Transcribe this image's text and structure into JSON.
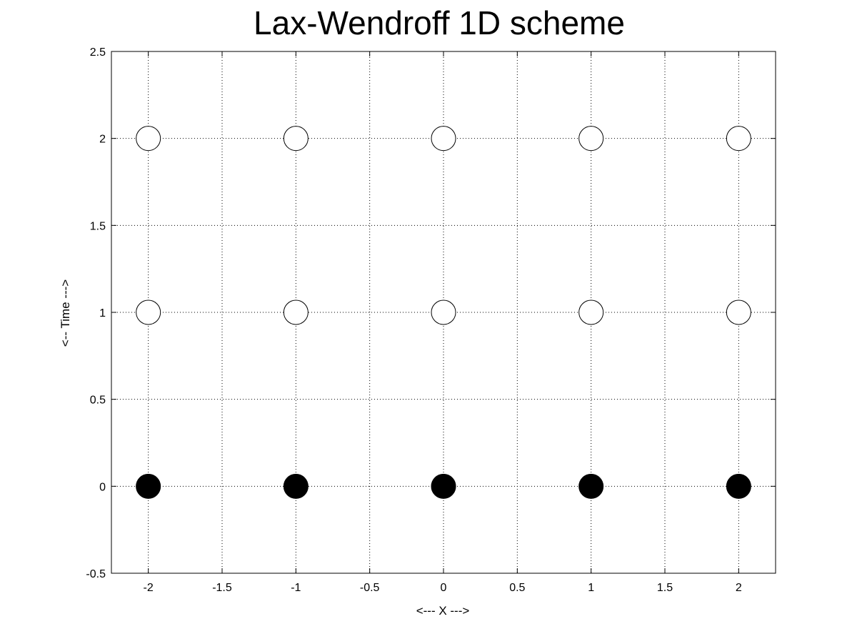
{
  "chart_data": {
    "type": "scatter",
    "title": "Lax-Wendroff 1D scheme",
    "xlabel": "<--- X --->",
    "ylabel": "<-- Time --->",
    "xlim": [
      -2.25,
      2.25
    ],
    "ylim": [
      -0.5,
      2.5
    ],
    "x_ticks": [
      -2,
      -1.5,
      -1,
      -0.5,
      0,
      0.5,
      1,
      1.5,
      2
    ],
    "x_tick_labels": [
      "-2",
      "-1.5",
      "-1",
      "-0.5",
      "0",
      "0.5",
      "1",
      "1.5",
      "2"
    ],
    "y_ticks": [
      -0.5,
      0,
      0.5,
      1,
      1.5,
      2,
      2.5
    ],
    "y_tick_labels": [
      "-0.5",
      "0",
      "0.5",
      "1",
      "1.5",
      "2",
      "2.5"
    ],
    "grid": true,
    "series": [
      {
        "marker": "filled-circle",
        "color": "#000000",
        "points": [
          [
            -2,
            0
          ],
          [
            -1,
            0
          ],
          [
            0,
            0
          ],
          [
            1,
            0
          ],
          [
            2,
            0
          ]
        ]
      },
      {
        "marker": "open-circle",
        "color": "#000000",
        "points": [
          [
            -2,
            1
          ],
          [
            -1,
            1
          ],
          [
            0,
            1
          ],
          [
            1,
            1
          ],
          [
            2,
            1
          ],
          [
            -2,
            2
          ],
          [
            -1,
            2
          ],
          [
            0,
            2
          ],
          [
            1,
            2
          ],
          [
            2,
            2
          ]
        ]
      }
    ]
  }
}
